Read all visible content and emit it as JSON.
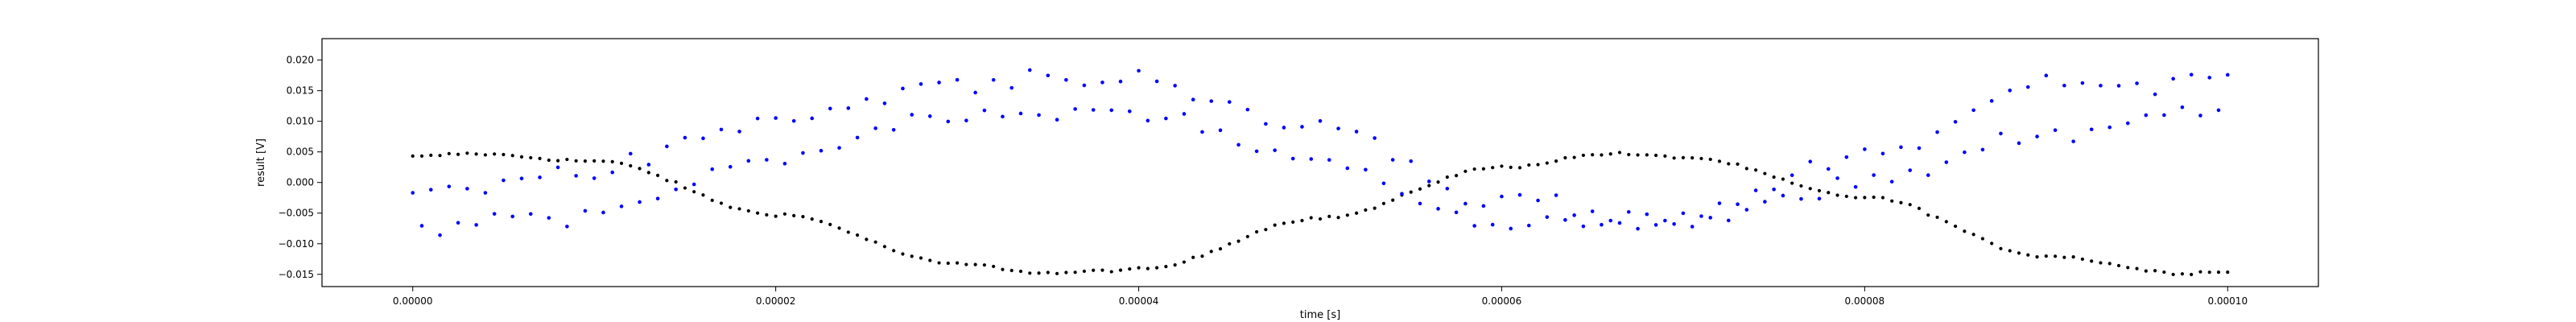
{
  "chart_data": {
    "type": "scatter",
    "title": "",
    "xlabel": "time [s]",
    "ylabel": "result [V]",
    "xlim": [
      -5e-06,
      0.000105
    ],
    "ylim": [
      -0.017,
      0.0235
    ],
    "x_tick_values": [
      0,
      2e-05,
      4e-05,
      6e-05,
      8e-05,
      0.0001
    ],
    "x_tick_labels": [
      "0.00000",
      "0.00002",
      "0.00004",
      "0.00006",
      "0.00008",
      "0.00010"
    ],
    "y_tick_values": [
      -0.015,
      -0.01,
      -0.005,
      0,
      0.005,
      0.01,
      0.015,
      0.02
    ],
    "y_tick_labels": [
      "−0.015",
      "−0.010",
      "−0.005",
      "0.000",
      "0.005",
      "0.010",
      "0.015",
      "0.020"
    ],
    "grid": false,
    "legend": "none",
    "x_sample_spacing": 5e-07,
    "series": [
      {
        "color": "#000000",
        "marker": "dot",
        "x_range": [
          0,
          0.0001
        ],
        "form": "sinusoid: center -0.005, amplitude 0.0098, period 0.0000625, first maximum near 0.000003",
        "values": [
          {
            "x": 0.0,
            "y": 0.0042
          },
          {
            "x": 3e-06,
            "y": 0.0047
          },
          {
            "x": 1e-05,
            "y": 0.0035
          },
          {
            "x": 2e-05,
            "y": -0.0052
          },
          {
            "x": 3e-05,
            "y": -0.0133
          },
          {
            "x": 3.5e-05,
            "y": -0.0148
          },
          {
            "x": 4e-05,
            "y": -0.0142
          },
          {
            "x": 5e-05,
            "y": -0.0058
          },
          {
            "x": 6e-05,
            "y": 0.0025
          },
          {
            "x": 6.6e-05,
            "y": 0.0047
          },
          {
            "x": 7e-05,
            "y": 0.0041
          },
          {
            "x": 8e-05,
            "y": -0.0024
          },
          {
            "x": 9e-05,
            "y": -0.012
          },
          {
            "x": 9.75e-05,
            "y": -0.0148
          },
          {
            "x": 0.0001,
            "y": -0.0145
          }
        ]
      },
      {
        "color": "#0000ff",
        "marker": "dot",
        "x_range": [
          0,
          0.0001
        ],
        "form": "two interleaved noisy sinusoidal bands (upper and lower), noise sd about 0.0009",
        "upper_band": [
          {
            "x": 0.0,
            "y": -0.0015
          },
          {
            "x": 1e-05,
            "y": 0.002
          },
          {
            "x": 2e-05,
            "y": 0.01
          },
          {
            "x": 3e-05,
            "y": 0.0165
          },
          {
            "x": 4e-05,
            "y": 0.017
          },
          {
            "x": 5e-05,
            "y": 0.0085
          },
          {
            "x": 6e-05,
            "y": -0.0035
          },
          {
            "x": 7e-05,
            "y": -0.006
          },
          {
            "x": 8e-05,
            "y": 0.0045
          },
          {
            "x": 9e-05,
            "y": 0.016
          },
          {
            "x": 0.0001,
            "y": 0.0165
          }
        ],
        "lower_band": [
          {
            "x": 0.0,
            "y": -0.0075
          },
          {
            "x": 1e-05,
            "y": -0.005
          },
          {
            "x": 2e-05,
            "y": 0.004
          },
          {
            "x": 3e-05,
            "y": 0.011
          },
          {
            "x": 4e-05,
            "y": 0.011
          },
          {
            "x": 5e-05,
            "y": 0.004
          },
          {
            "x": 6e-05,
            "y": -0.0065
          },
          {
            "x": 7e-05,
            "y": -0.0065
          },
          {
            "x": 8e-05,
            "y": -0.0005
          },
          {
            "x": 9e-05,
            "y": 0.0085
          },
          {
            "x": 0.0001,
            "y": 0.012
          }
        ]
      }
    ]
  }
}
